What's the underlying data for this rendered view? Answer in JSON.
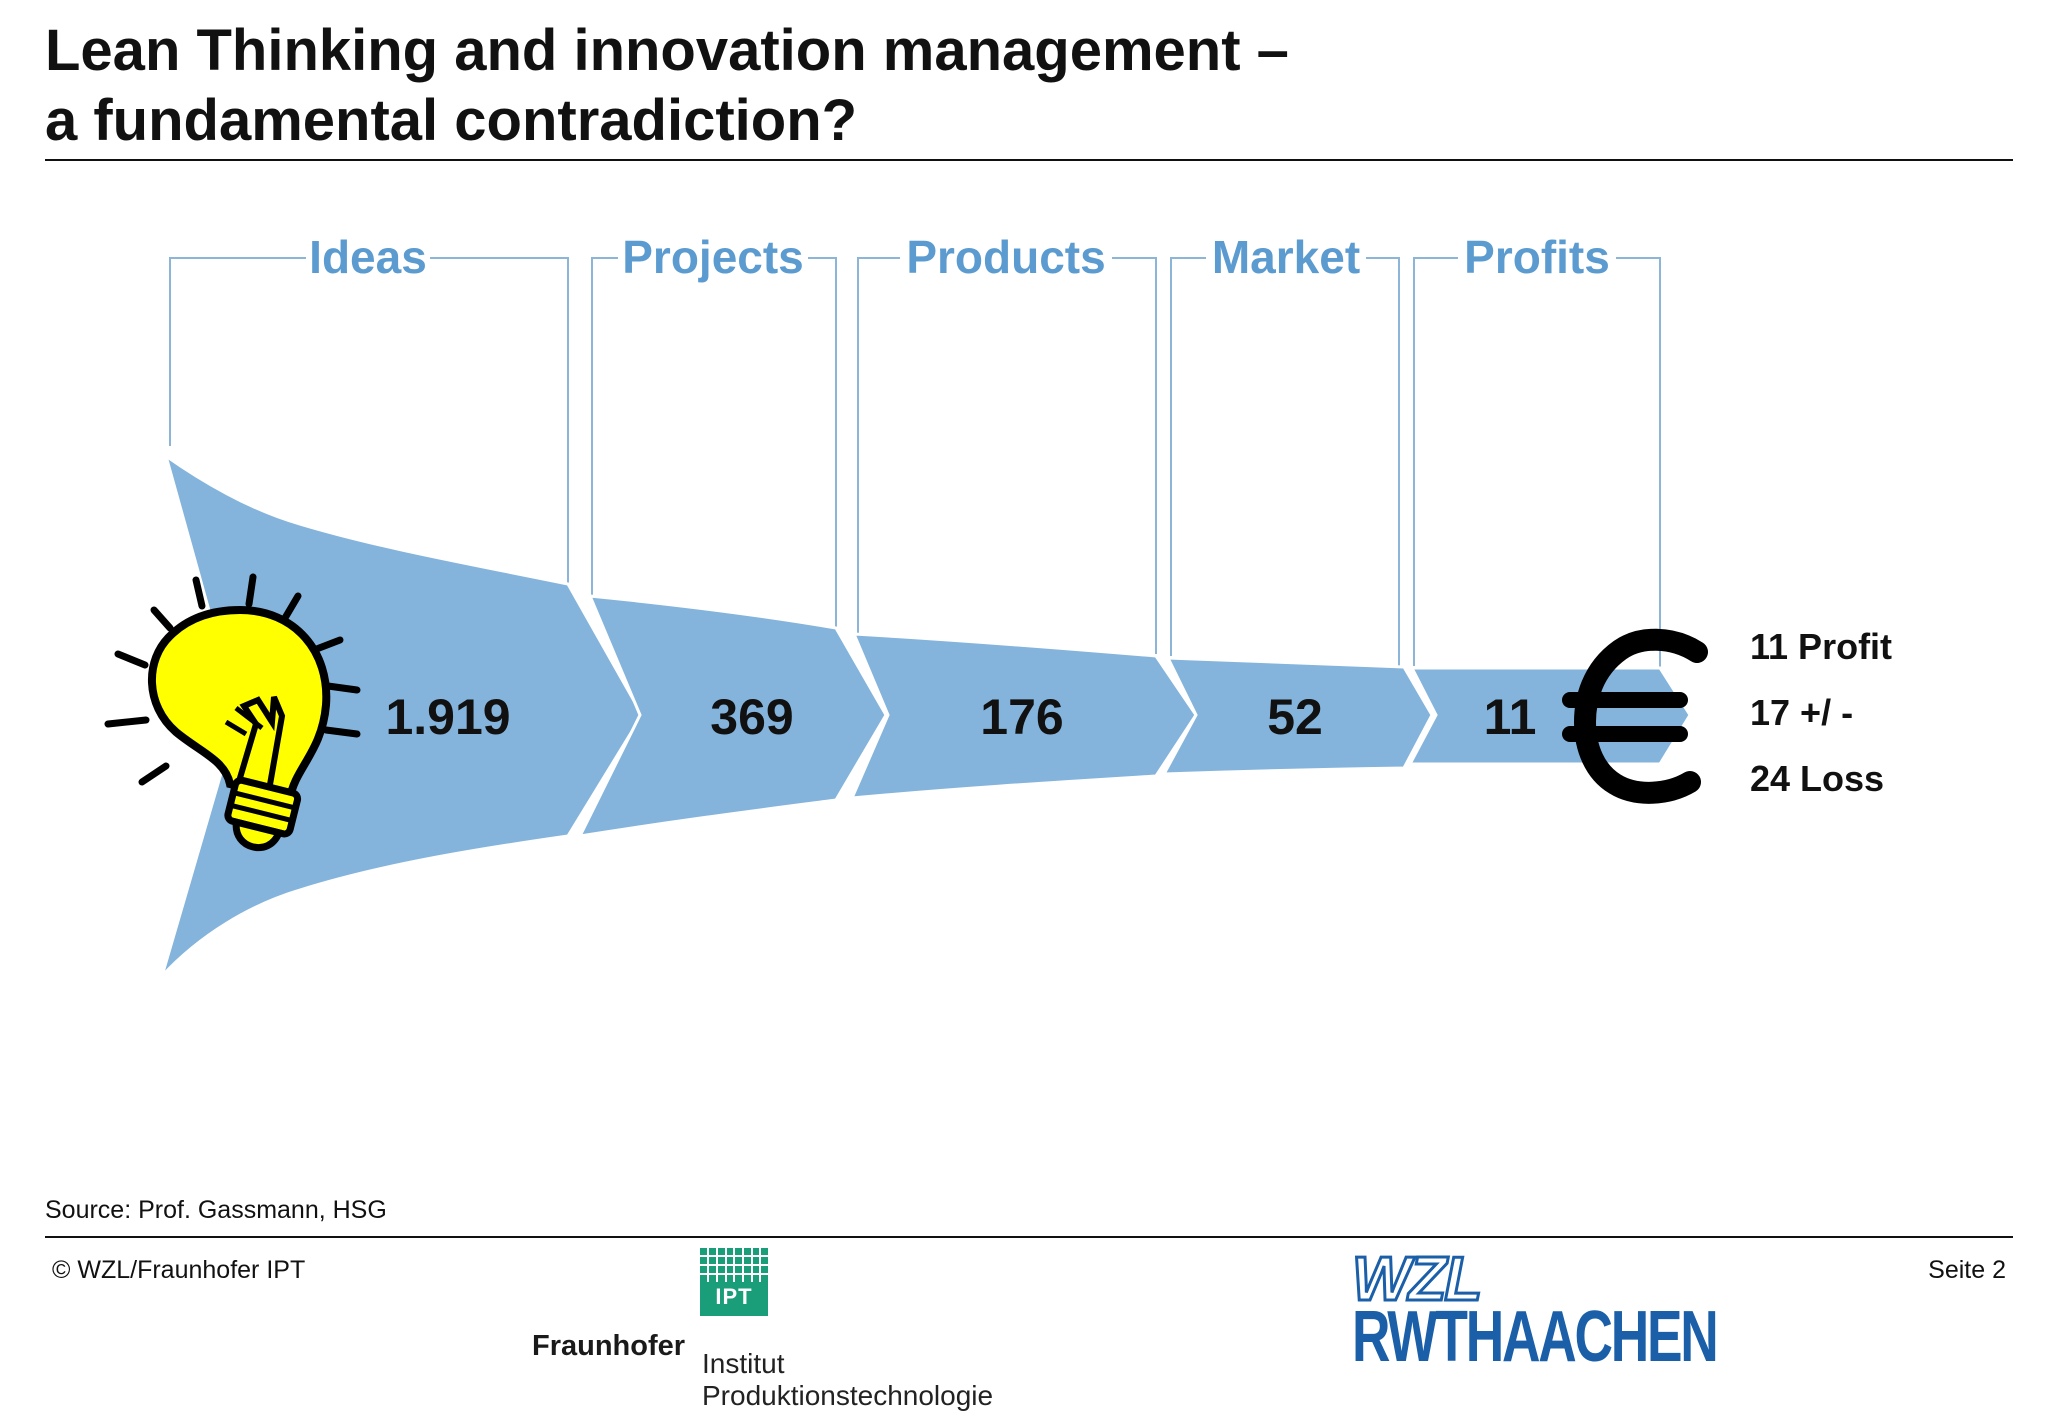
{
  "title": {
    "line1": "Lean Thinking and innovation management –",
    "line2": "a fundamental contradiction?"
  },
  "funnel": {
    "stages": [
      {
        "label": "Ideas",
        "value": "1.919"
      },
      {
        "label": "Projects",
        "value": "369"
      },
      {
        "label": "Products",
        "value": "176"
      },
      {
        "label": "Market",
        "value": "52"
      },
      {
        "label": "Profits",
        "value": "11"
      }
    ],
    "outcomes": [
      "11 Profit",
      "17 +/ -",
      "24 Loss"
    ]
  },
  "icons": [
    "lightbulb-icon",
    "euro-icon"
  ],
  "colors": {
    "stage_label": "#5b9bcf",
    "funnel_fill": "#84b4dc",
    "frame_line": "#8cb5d8",
    "bulb": "#ffff00"
  },
  "source": "Source: Prof. Gassmann, HSG",
  "footer": {
    "copyright": "© WZL/Fraunhofer IPT",
    "page": "Seite 2",
    "fraunhofer_name": "Fraunhofer",
    "fraunhofer_line1": "Institut",
    "fraunhofer_line2": "Produktionstechnologie",
    "ipt_logo_text": "IPT",
    "wzl_logo_text": "WZL",
    "rwth_logo_text": "RWTHAACHEN"
  }
}
